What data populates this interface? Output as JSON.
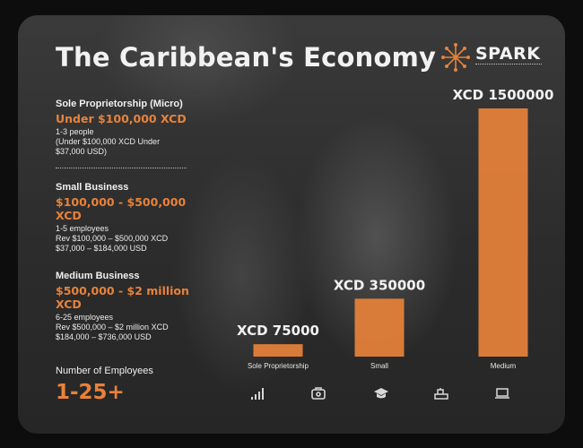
{
  "title": "The Caribbean's Economy",
  "logo": {
    "text": "SPARK",
    "icon": "spark-burst-icon"
  },
  "colors": {
    "accent": "#e8823a",
    "bar": "#e8823a"
  },
  "segments": [
    {
      "name": "Sole Proprietorship (Micro)",
      "range": "Under $100,000 XCD",
      "details": [
        "1-3 people",
        "(Under $100,000 XCD Under",
        "$37,000 USD)"
      ]
    },
    {
      "name": "Small Business",
      "range": "$100,000 - $500,000 XCD",
      "details": [
        "1-5 employees",
        "Rev $100,000 – $500,000 XCD",
        "$37,000 – $184,000 USD"
      ]
    },
    {
      "name": "Medium Business",
      "range": "$500,000 - $2 million XCD",
      "details": [
        "6-25 employees",
        "Rev $500,000 – $2 million XCD",
        "$184,000 – $736,000 USD"
      ]
    }
  ],
  "employees": {
    "label": "Number of Employees",
    "value": "1-25+"
  },
  "chart_data": {
    "type": "bar",
    "categories": [
      "Sole Proprietorship",
      "Small",
      "Medium"
    ],
    "values": [
      75000,
      350000,
      1500000
    ],
    "data_labels": [
      "XCD 75000",
      "XCD 350000",
      "XCD 1500000"
    ],
    "ylim": [
      0,
      1500000
    ],
    "grid": false
  },
  "bottom_icons": [
    "signal-bars-icon",
    "briefcase-icon",
    "graduation-cap-icon",
    "cash-register-icon",
    "laptop-icon"
  ]
}
